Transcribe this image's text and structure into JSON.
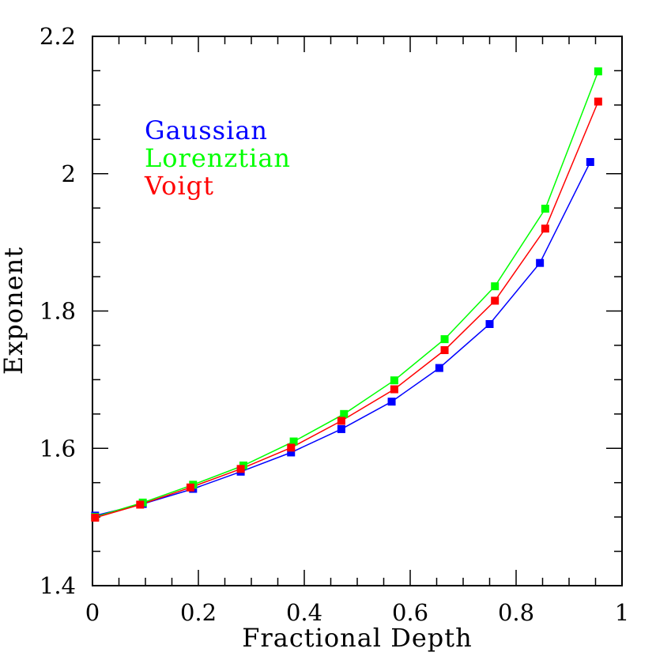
{
  "chart_data": {
    "type": "line",
    "xlabel": "Fractional Depth",
    "ylabel": "Exponent",
    "xlim": [
      0,
      1
    ],
    "ylim": [
      1.4,
      2.2
    ],
    "x_ticks": [
      "0",
      "0.2",
      "0.4",
      "0.6",
      "0.8",
      "1"
    ],
    "y_ticks": [
      "1.4",
      "1.6",
      "1.8",
      "2",
      "2.2"
    ],
    "grid": false,
    "legend_position": "top-left",
    "series": [
      {
        "name": "Gaussian",
        "color": "#0000ff",
        "x": [
          0.005,
          0.095,
          0.19,
          0.28,
          0.375,
          0.47,
          0.565,
          0.655,
          0.75,
          0.845,
          0.94
        ],
        "y": [
          1.502,
          1.519,
          1.541,
          1.566,
          1.594,
          1.628,
          1.668,
          1.717,
          1.781,
          1.87,
          2.017
        ]
      },
      {
        "name": "Lorenztian",
        "color": "#00ff00",
        "x": [
          0.005,
          0.095,
          0.19,
          0.285,
          0.38,
          0.475,
          0.57,
          0.665,
          0.76,
          0.855,
          0.955
        ],
        "y": [
          1.5,
          1.521,
          1.547,
          1.575,
          1.61,
          1.65,
          1.699,
          1.759,
          1.836,
          1.949,
          2.149
        ]
      },
      {
        "name": "Voigt",
        "color": "#ff0000",
        "x": [
          0.005,
          0.09,
          0.185,
          0.28,
          0.375,
          0.47,
          0.57,
          0.665,
          0.76,
          0.855,
          0.955
        ],
        "y": [
          1.499,
          1.518,
          1.543,
          1.57,
          1.601,
          1.64,
          1.686,
          1.743,
          1.815,
          1.92,
          2.105
        ]
      }
    ]
  }
}
